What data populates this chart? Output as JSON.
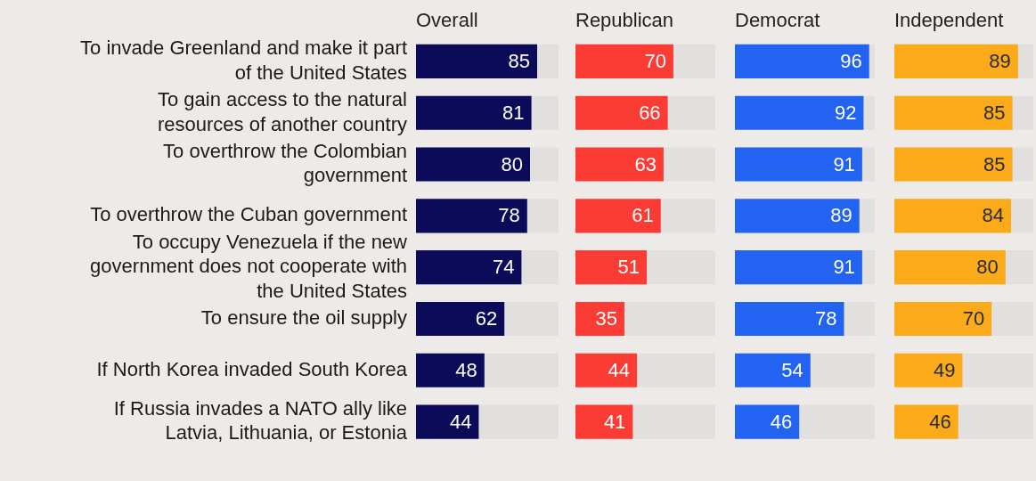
{
  "chart_data": [
    {
      "type": "bar",
      "orientation": "horizontal",
      "title": "Overall",
      "categories": [
        "To invade Greenland and make it part of the United States",
        "To gain access to the natural resources of another country",
        "To overthrow the Colombian government",
        "To overthrow the Cuban government",
        "To occupy Venezuela if the new government does not cooperate with the United States",
        "To ensure the oil supply",
        "If North Korea invaded South Korea",
        "If Russia invades a NATO ally like Latvia, Lithuania, or Estonia"
      ],
      "values": [
        85,
        81,
        80,
        78,
        74,
        62,
        48,
        44
      ],
      "color": "#0b0b5a",
      "xlim": [
        0,
        100
      ],
      "tick_labels": "y",
      "data_labels": true
    },
    {
      "type": "bar",
      "orientation": "horizontal",
      "title": "Republican",
      "categories": [
        null,
        null,
        null,
        null,
        null,
        null,
        null,
        null
      ],
      "values": [
        70,
        66,
        63,
        61,
        51,
        35,
        44,
        41
      ],
      "color": "#fa3c35",
      "xlim": [
        0,
        100
      ],
      "tick_labels": false,
      "data_labels": true
    },
    {
      "type": "bar",
      "orientation": "horizontal",
      "title": "Democrat",
      "categories": [
        null,
        null,
        null,
        null,
        null,
        null,
        null,
        null
      ],
      "values": [
        96,
        92,
        91,
        89,
        91,
        78,
        54,
        46
      ],
      "color": "#2363f2",
      "xlim": [
        0,
        100
      ],
      "tick_labels": false,
      "data_labels": true
    },
    {
      "type": "bar",
      "orientation": "horizontal",
      "title": "Independent",
      "categories": [
        null,
        null,
        null,
        null,
        null,
        null,
        null,
        null
      ],
      "values": [
        89,
        85,
        85,
        84,
        80,
        70,
        49,
        46
      ],
      "color": "#fbab1a",
      "xlim": [
        0,
        100
      ],
      "tick_labels": false,
      "data_labels": true
    }
  ]
}
